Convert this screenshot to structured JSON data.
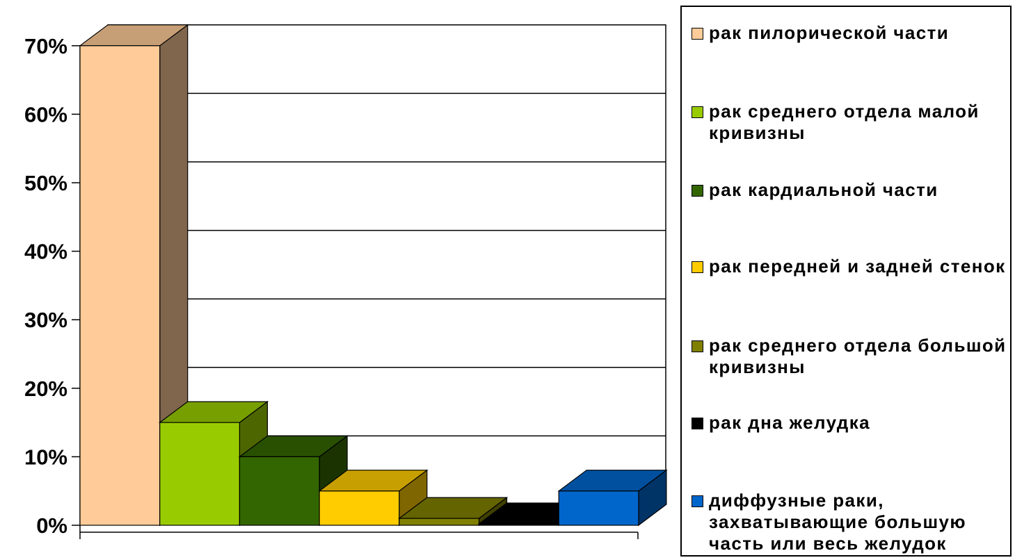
{
  "chart_data": {
    "type": "bar",
    "title": "",
    "xlabel": "",
    "ylabel": "",
    "ylim": [
      0,
      70
    ],
    "y_tick_step": 10,
    "y_tick_labels": [
      "0%",
      "10%",
      "20%",
      "30%",
      "40%",
      "50%",
      "60%",
      "70%"
    ],
    "grid": true,
    "three_d": true,
    "legend_position": "right",
    "series": [
      {
        "name": "рак пилорической части",
        "value": 70,
        "color": "#FFCC99"
      },
      {
        "name": "рак среднего отдела малой кривизны",
        "value": 15,
        "color": "#99CC00"
      },
      {
        "name": "рак кардиальной части",
        "value": 10,
        "color": "#336600"
      },
      {
        "name": "рак передней и задней стенок",
        "value": 5,
        "color": "#FFCC00"
      },
      {
        "name": "рак среднего отдела большой кривизны",
        "value": 1,
        "color": "#808000"
      },
      {
        "name": "рак дна желудка",
        "value": 0.2,
        "color": "#000000"
      },
      {
        "name": "диффузные раки, захватывающие большую часть или весь желудок",
        "value": 5,
        "color": "#0066CC"
      }
    ]
  }
}
